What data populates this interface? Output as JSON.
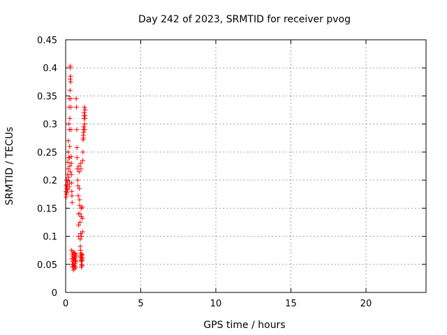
{
  "chart_data": {
    "type": "scatter",
    "title": "Day 242 of 2023, SRMTID for receiver pvog",
    "xlabel": "GPS time / hours",
    "ylabel": "SRMTID / TECUs",
    "xlim": [
      0,
      24
    ],
    "ylim": [
      0,
      0.45
    ],
    "xticks": [
      0,
      5,
      10,
      15,
      20
    ],
    "yticks": [
      0,
      0.05,
      0.1,
      0.15,
      0.2,
      0.25,
      0.3,
      0.35,
      0.4,
      0.45
    ],
    "xtick_labels": [
      "0",
      "5",
      "10",
      "15",
      "20"
    ],
    "ytick_labels": [
      "0",
      "0.05",
      "0.1",
      "0.15",
      "0.2",
      "0.25",
      "0.3",
      "0.35",
      "0.4",
      "0.45"
    ],
    "grid": true,
    "marker": "+",
    "color": "#ff0000",
    "series": [
      {
        "points": [
          [
            0.02,
            0.18
          ],
          [
            0.03,
            0.17
          ],
          [
            0.04,
            0.19
          ],
          [
            0.05,
            0.175
          ],
          [
            0.06,
            0.2
          ],
          [
            0.07,
            0.185
          ],
          [
            0.08,
            0.178
          ],
          [
            0.1,
            0.192
          ],
          [
            0.12,
            0.183
          ],
          [
            0.13,
            0.21
          ],
          [
            0.14,
            0.198
          ],
          [
            0.15,
            0.232
          ],
          [
            0.16,
            0.22
          ],
          [
            0.17,
            0.25
          ],
          [
            0.18,
            0.27
          ],
          [
            0.19,
            0.24
          ],
          [
            0.2,
            0.205
          ],
          [
            0.22,
            0.3
          ],
          [
            0.23,
            0.33
          ],
          [
            0.24,
            0.345
          ],
          [
            0.25,
            0.29
          ],
          [
            0.26,
            0.24
          ],
          [
            0.27,
            0.26
          ],
          [
            0.28,
            0.31
          ],
          [
            0.29,
            0.36
          ],
          [
            0.3,
            0.38
          ],
          [
            0.3,
            0.403
          ],
          [
            0.31,
            0.4
          ],
          [
            0.32,
            0.385
          ],
          [
            0.33,
            0.375
          ],
          [
            0.34,
            0.345
          ],
          [
            0.35,
            0.33
          ],
          [
            0.36,
            0.29
          ],
          [
            0.37,
            0.242
          ],
          [
            0.38,
            0.23
          ],
          [
            0.39,
            0.21
          ],
          [
            0.4,
            0.195
          ],
          [
            0.41,
            0.18
          ],
          [
            0.42,
            0.172
          ],
          [
            0.43,
            0.16
          ],
          [
            0.3,
            0.215
          ],
          [
            0.28,
            0.225
          ],
          [
            0.26,
            0.195
          ],
          [
            0.24,
            0.188
          ],
          [
            0.4,
            0.075
          ],
          [
            0.42,
            0.06
          ],
          [
            0.44,
            0.05
          ],
          [
            0.46,
            0.045
          ],
          [
            0.48,
            0.055
          ],
          [
            0.5,
            0.065
          ],
          [
            0.52,
            0.04
          ],
          [
            0.54,
            0.058
          ],
          [
            0.56,
            0.07
          ],
          [
            0.58,
            0.048
          ],
          [
            0.6,
            0.062
          ],
          [
            0.62,
            0.052
          ],
          [
            0.64,
            0.068
          ],
          [
            0.66,
            0.045
          ],
          [
            0.45,
            0.068
          ],
          [
            0.5,
            0.05
          ],
          [
            0.55,
            0.063
          ],
          [
            0.6,
            0.043
          ],
          [
            0.65,
            0.057
          ],
          [
            0.7,
            0.065
          ],
          [
            0.48,
            0.072
          ],
          [
            0.53,
            0.047
          ],
          [
            0.58,
            0.06
          ],
          [
            0.62,
            0.07
          ],
          [
            0.68,
            0.055
          ],
          [
            0.7,
            0.345
          ],
          [
            0.72,
            0.33
          ],
          [
            0.74,
            0.29
          ],
          [
            0.75,
            0.258
          ],
          [
            0.76,
            0.24
          ],
          [
            0.78,
            0.22
          ],
          [
            0.8,
            0.2
          ],
          [
            0.82,
            0.19
          ],
          [
            0.84,
            0.172
          ],
          [
            0.85,
            0.14
          ],
          [
            0.86,
            0.12
          ],
          [
            0.87,
            0.1
          ],
          [
            0.88,
            0.225
          ],
          [
            0.9,
            0.215
          ],
          [
            0.91,
            0.185
          ],
          [
            0.92,
            0.165
          ],
          [
            0.93,
            0.155
          ],
          [
            0.95,
            0.14
          ],
          [
            0.96,
            0.125
          ],
          [
            0.97,
            0.095
          ],
          [
            0.98,
            0.082
          ],
          [
            0.99,
            0.075
          ],
          [
            1.0,
            0.07
          ],
          [
            1.0,
            0.105
          ],
          [
            1.01,
            0.23
          ],
          [
            1.02,
            0.22
          ],
          [
            1.03,
            0.15
          ],
          [
            1.04,
            0.135
          ],
          [
            1.05,
            0.1
          ],
          [
            1.0,
            0.063
          ],
          [
            1.02,
            0.058
          ],
          [
            1.04,
            0.065
          ],
          [
            1.05,
            0.055
          ],
          [
            1.06,
            0.05
          ],
          [
            1.07,
            0.068
          ],
          [
            1.08,
            0.062
          ],
          [
            1.09,
            0.057
          ],
          [
            1.1,
            0.048
          ],
          [
            1.11,
            0.06
          ],
          [
            1.05,
            0.045
          ],
          [
            1.1,
            0.067
          ],
          [
            1.1,
            0.152
          ],
          [
            1.12,
            0.132
          ],
          [
            1.13,
            0.108
          ],
          [
            1.14,
            0.235
          ],
          [
            1.15,
            0.25
          ],
          [
            1.16,
            0.272
          ],
          [
            1.17,
            0.28
          ],
          [
            1.18,
            0.29
          ],
          [
            1.19,
            0.275
          ],
          [
            1.2,
            0.285
          ],
          [
            1.21,
            0.295
          ],
          [
            1.22,
            0.31
          ],
          [
            1.23,
            0.32
          ],
          [
            1.24,
            0.315
          ],
          [
            1.25,
            0.33
          ],
          [
            1.26,
            0.3
          ],
          [
            1.27,
            0.29
          ],
          [
            1.28,
            0.315
          ],
          [
            1.29,
            0.31
          ],
          [
            1.3,
            0.325
          ]
        ]
      }
    ]
  }
}
